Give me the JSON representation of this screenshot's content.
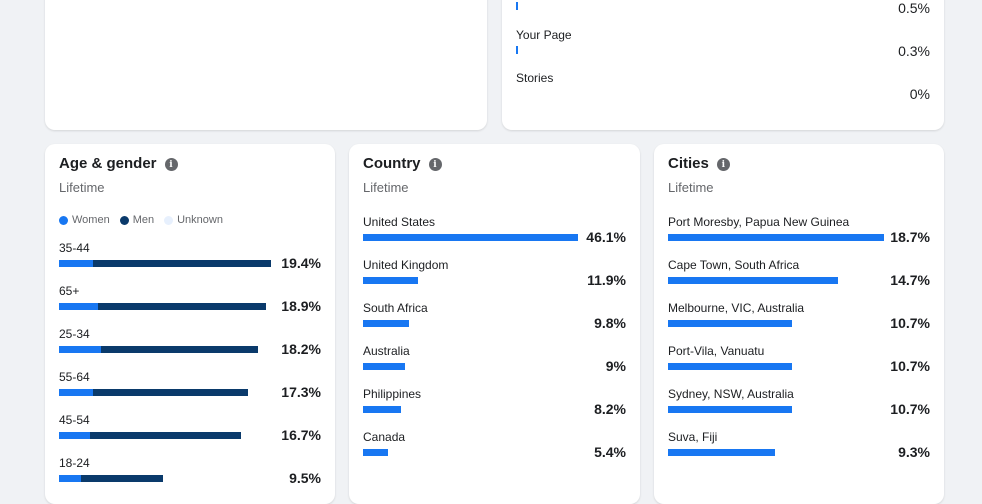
{
  "colors": {
    "accent": "#1877f2",
    "men": "#0a3a6b",
    "unknown": "#e7f0fd",
    "muted": "#65676b",
    "page_bg": "#f0f2f5"
  },
  "sources": [
    {
      "label": "",
      "pct": "0.5%"
    },
    {
      "label": "Your Page",
      "pct": "0.3%"
    },
    {
      "label": "Stories",
      "pct": "0%"
    }
  ],
  "age_gender": {
    "title": "Age & gender",
    "subtitle": "Lifetime",
    "info_icon": "info-icon",
    "legend": [
      {
        "label": "Women",
        "color": "#1877f2"
      },
      {
        "label": "Men",
        "color": "#0a3a6b"
      },
      {
        "label": "Unknown",
        "color": "#e7f0fd"
      }
    ],
    "rows": [
      {
        "label": "35-44",
        "pct": "19.4%",
        "value": 19.4,
        "women_share": 0.16
      },
      {
        "label": "65+",
        "pct": "18.9%",
        "value": 18.9,
        "women_share": 0.19
      },
      {
        "label": "25-34",
        "pct": "18.2%",
        "value": 18.2,
        "women_share": 0.21
      },
      {
        "label": "55-64",
        "pct": "17.3%",
        "value": 17.3,
        "women_share": 0.18
      },
      {
        "label": "45-54",
        "pct": "16.7%",
        "value": 16.7,
        "women_share": 0.17
      },
      {
        "label": "18-24",
        "pct": "9.5%",
        "value": 9.5,
        "women_share": 0.21
      }
    ]
  },
  "country": {
    "title": "Country",
    "subtitle": "Lifetime",
    "info_icon": "info-icon",
    "rows": [
      {
        "label": "United States",
        "pct": "46.1%",
        "value": 46.1
      },
      {
        "label": "United Kingdom",
        "pct": "11.9%",
        "value": 11.9
      },
      {
        "label": "South Africa",
        "pct": "9.8%",
        "value": 9.8
      },
      {
        "label": "Australia",
        "pct": "9%",
        "value": 9
      },
      {
        "label": "Philippines",
        "pct": "8.2%",
        "value": 8.2
      },
      {
        "label": "Canada",
        "pct": "5.4%",
        "value": 5.4
      }
    ]
  },
  "cities": {
    "title": "Cities",
    "subtitle": "Lifetime",
    "info_icon": "info-icon",
    "rows": [
      {
        "label": "Port Moresby, Papua New Guinea",
        "pct": "18.7%",
        "value": 18.7
      },
      {
        "label": "Cape Town, South Africa",
        "pct": "14.7%",
        "value": 14.7
      },
      {
        "label": "Melbourne, VIC, Australia",
        "pct": "10.7%",
        "value": 10.7
      },
      {
        "label": "Port-Vila, Vanuatu",
        "pct": "10.7%",
        "value": 10.7
      },
      {
        "label": "Sydney, NSW, Australia",
        "pct": "10.7%",
        "value": 10.7
      },
      {
        "label": "Suva, Fiji",
        "pct": "9.3%",
        "value": 9.3
      }
    ]
  }
}
